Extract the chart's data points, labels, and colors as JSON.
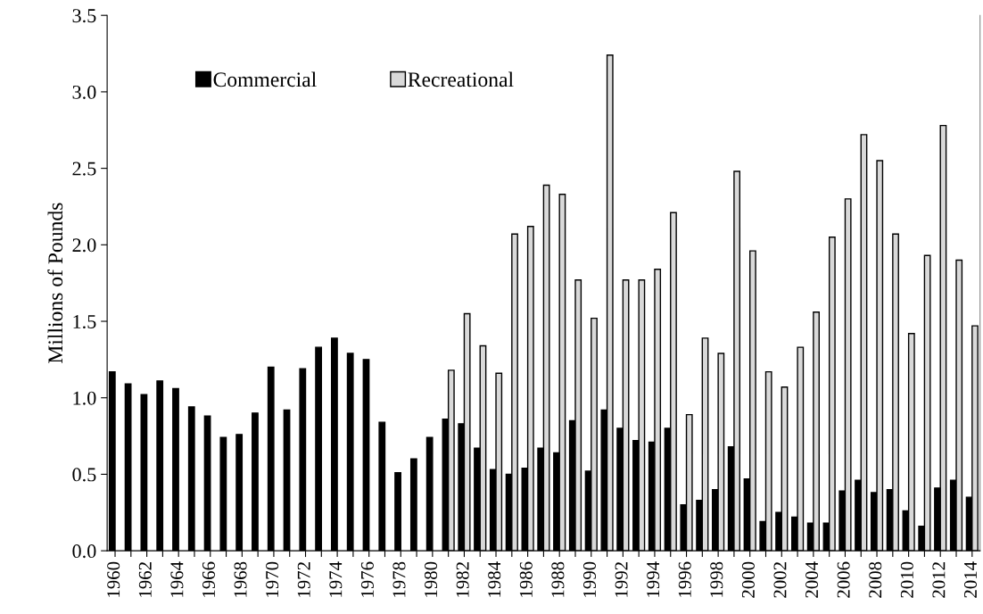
{
  "chart_data": {
    "type": "bar",
    "ylabel": "Millions of Pounds",
    "categories": [
      "1960",
      null,
      "1962",
      null,
      "1964",
      null,
      "1966",
      null,
      "1968",
      null,
      "1970",
      null,
      "1972",
      null,
      "1974",
      null,
      "1976",
      null,
      "1978",
      null,
      "1980",
      null,
      "1982",
      null,
      "1984",
      null,
      "1986",
      null,
      "1988",
      null,
      "1990",
      null,
      "1992",
      null,
      "1994",
      null,
      "1996",
      null,
      "1998",
      null,
      "2000",
      null,
      "2002",
      null,
      "2004",
      null,
      "2006",
      null,
      "2008",
      null,
      "2010",
      null,
      "2012",
      null,
      "2014"
    ],
    "series": [
      {
        "name": "Commercial",
        "color": "#000000",
        "values": [
          1.17,
          1.09,
          1.02,
          1.11,
          1.06,
          0.94,
          0.88,
          0.74,
          0.76,
          0.9,
          1.2,
          0.92,
          1.19,
          1.33,
          1.39,
          1.29,
          1.25,
          0.84,
          0.51,
          0.6,
          0.74,
          0.86,
          0.83,
          0.67,
          0.53,
          0.5,
          0.54,
          0.67,
          0.64,
          0.85,
          0.52,
          0.92,
          0.8,
          0.72,
          0.71,
          0.8,
          0.3,
          0.33,
          0.4,
          0.68,
          0.47,
          0.19,
          0.25,
          0.22,
          0.18,
          0.18,
          0.39,
          0.46,
          0.38,
          0.4,
          0.26,
          0.16,
          0.41,
          0.46,
          0.35
        ]
      },
      {
        "name": "Recreational",
        "color": "#d9d9d9",
        "values": [
          null,
          null,
          null,
          null,
          null,
          null,
          null,
          null,
          null,
          null,
          null,
          null,
          null,
          null,
          null,
          null,
          null,
          null,
          null,
          null,
          null,
          1.18,
          1.55,
          1.34,
          1.16,
          2.07,
          2.12,
          2.39,
          2.33,
          1.77,
          1.52,
          3.24,
          1.77,
          1.77,
          1.84,
          2.21,
          0.89,
          1.39,
          1.29,
          2.48,
          1.96,
          1.17,
          1.07,
          1.33,
          1.56,
          2.05,
          2.3,
          2.72,
          2.55,
          2.07,
          1.42,
          1.93,
          2.78,
          1.9,
          1.47
        ]
      }
    ],
    "ylim": [
      0,
      3.5
    ],
    "yticks": [
      {
        "value": 0,
        "label": "0.0"
      },
      {
        "value": 0.5,
        "label": "0.5"
      },
      {
        "value": 1,
        "label": "1.0"
      },
      {
        "value": 1.5,
        "label": "1.5"
      },
      {
        "value": 2,
        "label": "2.0"
      },
      {
        "value": 2.5,
        "label": "2.5"
      },
      {
        "value": 3,
        "label": "3.0"
      },
      {
        "value": 3.5,
        "label": "3.5"
      }
    ],
    "legend": "top left",
    "grid": false
  }
}
